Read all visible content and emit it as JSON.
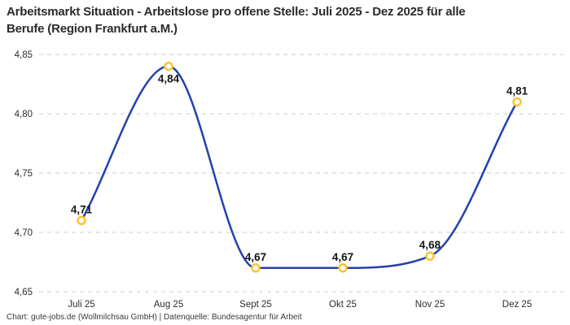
{
  "header": {
    "title_line1": "Arbeitsmarkt Situation - Arbeitslose pro offene Stelle: Juli 2025 - Dez 2025 für alle",
    "title_line2": "Berufe (Region Frankfurt a.M.)"
  },
  "footer": {
    "attribution": "Chart: gute-jobs.de (Wollmilchsau GmbH) | Datenquelle: Bundesagentur für Arbeit"
  },
  "chart_data": {
    "type": "line",
    "title": "Arbeitsmarkt Situation - Arbeitslose pro offene Stelle: Juli 2025 - Dez 2025 für alle Berufe (Region Frankfurt a.M.)",
    "categories": [
      "Juli 25",
      "Aug 25",
      "Sept 25",
      "Okt 25",
      "Nov 25",
      "Dez 25"
    ],
    "values": [
      4.71,
      4.84,
      4.67,
      4.67,
      4.68,
      4.81
    ],
    "point_labels": [
      "4,71",
      "4,84",
      "4,67",
      "4,67",
      "4,68",
      "4,81"
    ],
    "label_positions": [
      "above",
      "below",
      "above",
      "above",
      "above",
      "above"
    ],
    "yticks": [
      {
        "value": 4.85,
        "label": "4,85"
      },
      {
        "value": 4.8,
        "label": "4,80"
      },
      {
        "value": 4.75,
        "label": "4,75"
      },
      {
        "value": 4.7,
        "label": "4,70"
      },
      {
        "value": 4.65,
        "label": "4,65"
      }
    ],
    "ylim": [
      4.65,
      4.85
    ],
    "xlabel": "",
    "ylabel": "",
    "grid": "horizontal-dashed",
    "legend": "none",
    "curve": "monotone",
    "colors": {
      "line": "#2341AD",
      "marker_stroke": "#FDC32F",
      "marker_fill": "#FFFFFF",
      "grid": "#CBCBCB"
    }
  }
}
